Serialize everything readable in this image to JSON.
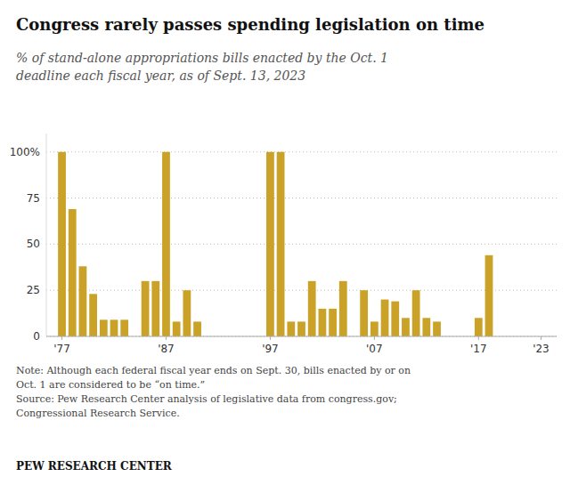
{
  "chart_data": {
    "type": "bar",
    "title": "Congress rarely passes spending legislation on time",
    "subtitle": "% of stand-alone appropriations bills enacted by the Oct. 1\ndeadline each fiscal year, as of Sept. 13, 2023",
    "annotations": [
      "Note: Although each federal fiscal year ends on Sept. 30, bills enacted by or on\nOct. 1 are considered to be “on time.”\nSource: Pew Research Center analysis of legislative data from congress.gov;\nCongressional Research Service.",
      "PEW RESEARCH CENTER"
    ],
    "x": [
      1977,
      1978,
      1979,
      1980,
      1981,
      1982,
      1983,
      1984,
      1985,
      1986,
      1987,
      1988,
      1989,
      1990,
      1991,
      1992,
      1993,
      1994,
      1995,
      1996,
      1997,
      1998,
      1999,
      2000,
      2001,
      2002,
      2003,
      2004,
      2005,
      2006,
      2007,
      2008,
      2009,
      2010,
      2011,
      2012,
      2013,
      2014,
      2015,
      2016,
      2017,
      2018,
      2019,
      2020,
      2021,
      2022,
      2023
    ],
    "values": [
      100,
      69,
      38,
      23,
      9,
      9,
      9,
      0,
      30,
      30,
      100,
      8,
      25,
      8,
      0,
      0,
      0,
      0,
      0,
      0,
      100,
      100,
      8,
      8,
      30,
      15,
      15,
      30,
      0,
      25,
      8,
      20,
      19,
      10,
      25,
      10,
      8,
      0,
      0,
      0,
      10,
      44,
      0,
      0,
      0,
      0,
      0
    ],
    "color": "#C9A227",
    "xlim": [
      1975.5,
      2024.5
    ],
    "xticks": [
      {
        "value": 1977,
        "label": "'77"
      },
      {
        "value": 1987,
        "label": "'87"
      },
      {
        "value": 1997,
        "label": "'97"
      },
      {
        "value": 2007,
        "label": "'07"
      },
      {
        "value": 2017,
        "label": "'17"
      },
      {
        "value": 2023,
        "label": "'23"
      }
    ],
    "ylim": [
      0,
      110
    ],
    "yticks": [
      0,
      25,
      50,
      75,
      {
        "value": 100,
        "label": "100%"
      }
    ],
    "grid": true
  }
}
